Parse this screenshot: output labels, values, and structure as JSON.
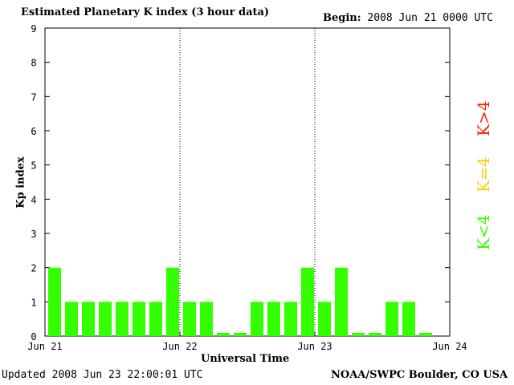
{
  "header": {
    "title": "Estimated Planetary K index (3 hour data)",
    "begin_label": "Begin:",
    "begin_value": "2008 Jun 21 0000 UTC"
  },
  "footer": {
    "updated": "Updated 2008 Jun 23 22:00:01 UTC",
    "source": "NOAA/SWPC Boulder, CO USA"
  },
  "legend": {
    "high": "K>4",
    "equal": "K=4",
    "low": "K<4",
    "colors": {
      "high": "#ff2200",
      "equal": "#ffcc00",
      "low": "#33ff00"
    }
  },
  "chart_data": {
    "type": "bar",
    "title": "Estimated Planetary K index (3 hour data)",
    "xlabel": "Universal Time",
    "ylabel": "Kp index",
    "ylim": [
      0,
      9
    ],
    "yticks": [
      "0",
      "1",
      "2",
      "3",
      "4",
      "5",
      "6",
      "7",
      "8",
      "9"
    ],
    "xticks": [
      "Jun 21",
      "Jun 22",
      "Jun 23",
      "Jun 24"
    ],
    "bar_color": "#33ff00",
    "values": [
      2,
      1,
      1,
      1,
      1,
      1,
      1,
      2,
      1,
      1,
      0,
      0,
      1,
      1,
      1,
      2,
      1,
      2,
      0,
      0,
      1,
      1,
      0
    ]
  }
}
